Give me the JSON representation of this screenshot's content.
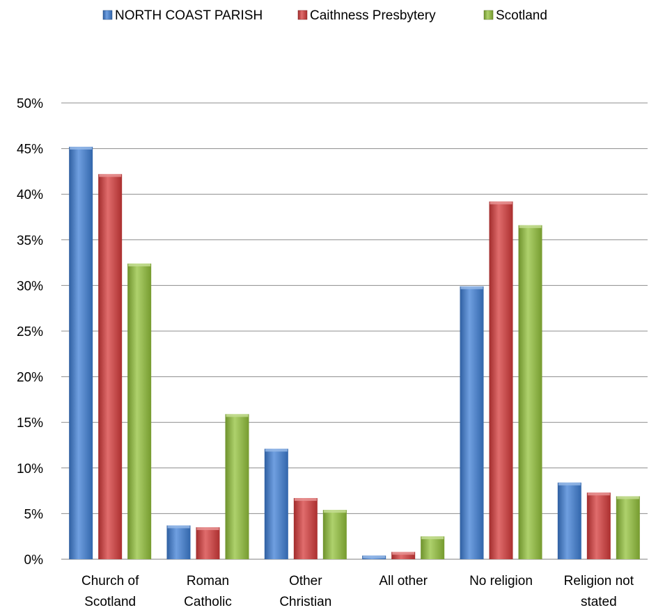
{
  "chart_data": {
    "type": "bar",
    "categories": [
      [
        "Church of",
        "Scotland"
      ],
      [
        "Roman",
        "Catholic"
      ],
      [
        "Other",
        "Christian"
      ],
      [
        "All other"
      ],
      [
        "No religion"
      ],
      [
        "Religion not",
        "stated"
      ]
    ],
    "series": [
      {
        "name": "NORTH COAST PARISH",
        "color": "#3f7fd6",
        "values": [
          45.2,
          3.7,
          12.1,
          0.4,
          29.9,
          8.4
        ]
      },
      {
        "name": "Caithness Presbytery",
        "color": "#d63b3b",
        "values": [
          42.2,
          3.5,
          6.7,
          0.8,
          39.2,
          7.3
        ]
      },
      {
        "name": "Scotland",
        "color": "#93c23b",
        "values": [
          32.4,
          15.9,
          5.4,
          2.5,
          36.6,
          6.9
        ]
      }
    ],
    "y_ticks": [
      "0%",
      "5%",
      "10%",
      "15%",
      "20%",
      "25%",
      "30%",
      "35%",
      "40%",
      "45%",
      "50%"
    ],
    "ylim": [
      0,
      50
    ],
    "grid": true,
    "legend_position": "top"
  }
}
